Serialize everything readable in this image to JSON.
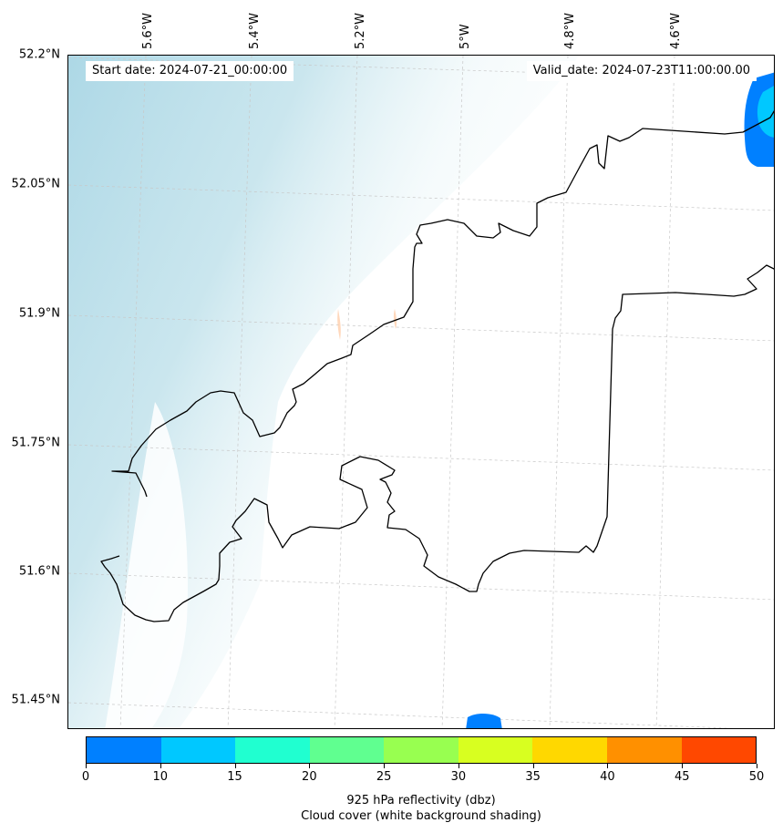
{
  "map": {
    "start_date": "Start date: 2024-07-21_00:00:00",
    "valid_date": "Valid_date: 2024-07-23T11:00:00.00",
    "lat_labels": [
      "52.2°N",
      "52.05°N",
      "51.9°N",
      "51.75°N",
      "51.6°N",
      "51.45°N"
    ],
    "lon_labels": [
      "5.6°W",
      "5.4°W",
      "5.2°W",
      "5°W",
      "4.8°W",
      "4.6°W"
    ],
    "coastline_color": "#000000",
    "gridline_color": "#c8c8c8",
    "cloud_color": "#add8e6"
  },
  "colorbar": {
    "tick_labels": [
      "0",
      "10",
      "15",
      "20",
      "25",
      "30",
      "35",
      "40",
      "45",
      "50"
    ],
    "colors": [
      "#0080ff",
      "#00c8ff",
      "#20ffd0",
      "#60ff90",
      "#98ff50",
      "#d8ff20",
      "#ffd800",
      "#ff9000",
      "#ff4800"
    ],
    "caption_line1": "925 hPa reflectivity (dbz)",
    "caption_line2": "Cloud cover (white background shading)"
  }
}
